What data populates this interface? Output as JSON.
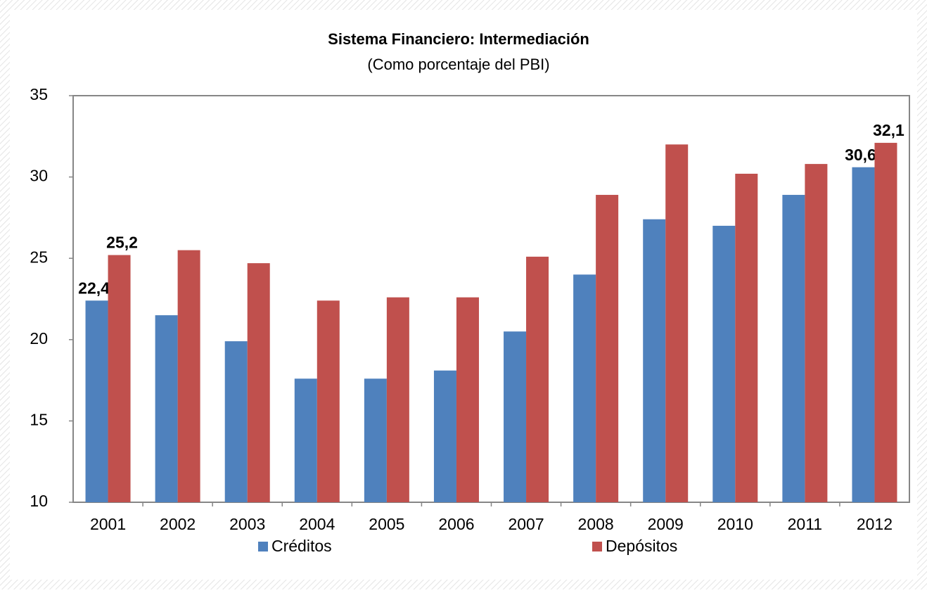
{
  "chart_data": {
    "type": "bar",
    "title": "Sistema Financiero: Intermediación",
    "subtitle": "(Como porcentaje del PBI)",
    "categories": [
      "2001",
      "2002",
      "2003",
      "2004",
      "2005",
      "2006",
      "2007",
      "2008",
      "2009",
      "2010",
      "2011",
      "2012"
    ],
    "series": [
      {
        "name": "Créditos",
        "color": "#4f81bd",
        "values": [
          22.4,
          21.5,
          19.9,
          17.6,
          17.6,
          18.1,
          20.5,
          24.0,
          27.4,
          27.0,
          28.9,
          30.6
        ],
        "value_labels": [
          "22,4",
          null,
          null,
          null,
          null,
          null,
          null,
          null,
          null,
          null,
          null,
          "30,6"
        ]
      },
      {
        "name": "Depósitos",
        "color": "#c0504d",
        "values": [
          25.2,
          25.5,
          24.7,
          22.4,
          22.6,
          22.6,
          25.1,
          28.9,
          32.0,
          30.2,
          30.8,
          32.1
        ],
        "value_labels": [
          "25,2",
          null,
          null,
          null,
          null,
          null,
          null,
          null,
          null,
          null,
          null,
          "32,1"
        ]
      }
    ],
    "ylim": [
      10,
      35
    ],
    "yticks": [
      10,
      15,
      20,
      25,
      30,
      35
    ],
    "legend": "bottom"
  }
}
